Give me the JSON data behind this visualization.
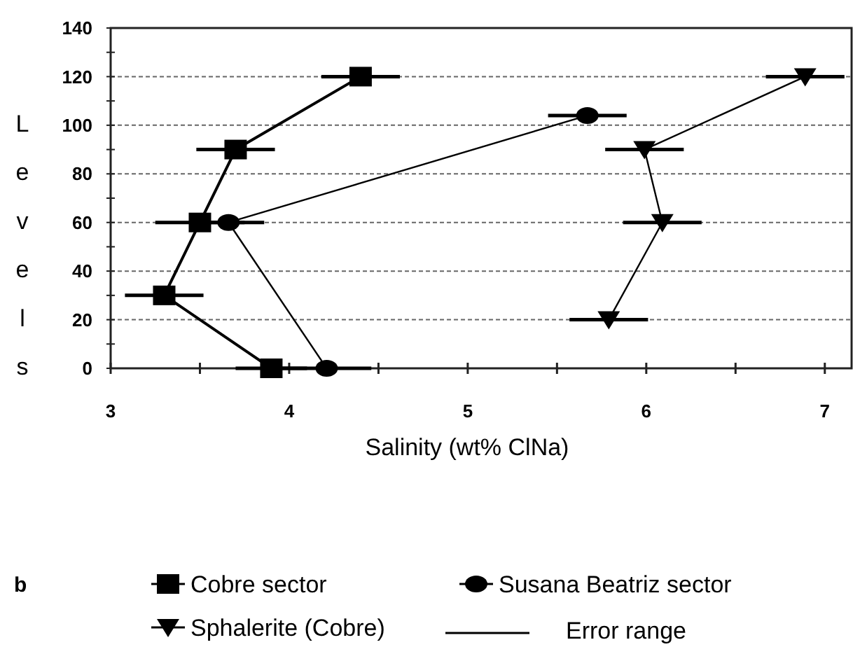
{
  "chart_data": {
    "type": "line",
    "xlabel": "Salinity (wt% ClNa)",
    "ylabel": "Levels",
    "xlim": [
      3,
      7.15
    ],
    "xticks": [
      3,
      {
        "value": 3.5,
        "label": null
      },
      4,
      {
        "value": 4.5,
        "label": null
      },
      5,
      {
        "value": 5.5,
        "label": null
      },
      6,
      {
        "value": 6.5,
        "label": null
      },
      7
    ],
    "ylim": [
      0,
      140
    ],
    "yticks": [
      0,
      {
        "value": 10,
        "label": null
      },
      20,
      {
        "value": 30,
        "label": null
      },
      40,
      {
        "value": 50,
        "label": null
      },
      60,
      {
        "value": 70,
        "label": null
      },
      80,
      {
        "value": 90,
        "label": null
      },
      100,
      {
        "value": 110,
        "label": null
      },
      120,
      {
        "value": 130,
        "label": null
      },
      140
    ],
    "grid": "y",
    "legend": "bottom",
    "line_style": "solid",
    "series": [
      {
        "name": "Cobre sector",
        "color": "#000000",
        "marker": "square",
        "x": [
          4.4,
          3.7,
          3.5,
          3.3,
          3.9
        ],
        "values": [
          120,
          90,
          60,
          30,
          0
        ],
        "xerrors": [
          0.22,
          0.22,
          0.25,
          0.22,
          0.2
        ]
      },
      {
        "name": "Susana Beatriz sector",
        "color": "#000000",
        "marker": "circle",
        "x": [
          4.21,
          3.66,
          5.67
        ],
        "values": [
          0,
          60,
          104
        ],
        "xerrors": [
          0.25,
          0.2,
          0.22
        ]
      },
      {
        "name": "Sphalerite (Cobre)",
        "color": "#000000",
        "marker": "triangle",
        "x": [
          6.89,
          5.99,
          6.09,
          5.79
        ],
        "values": [
          120,
          90,
          60,
          20
        ],
        "xerrors": [
          0.22,
          0.22,
          0.22,
          0.22
        ]
      }
    ],
    "annotations": [
      "b",
      "Error range"
    ]
  }
}
